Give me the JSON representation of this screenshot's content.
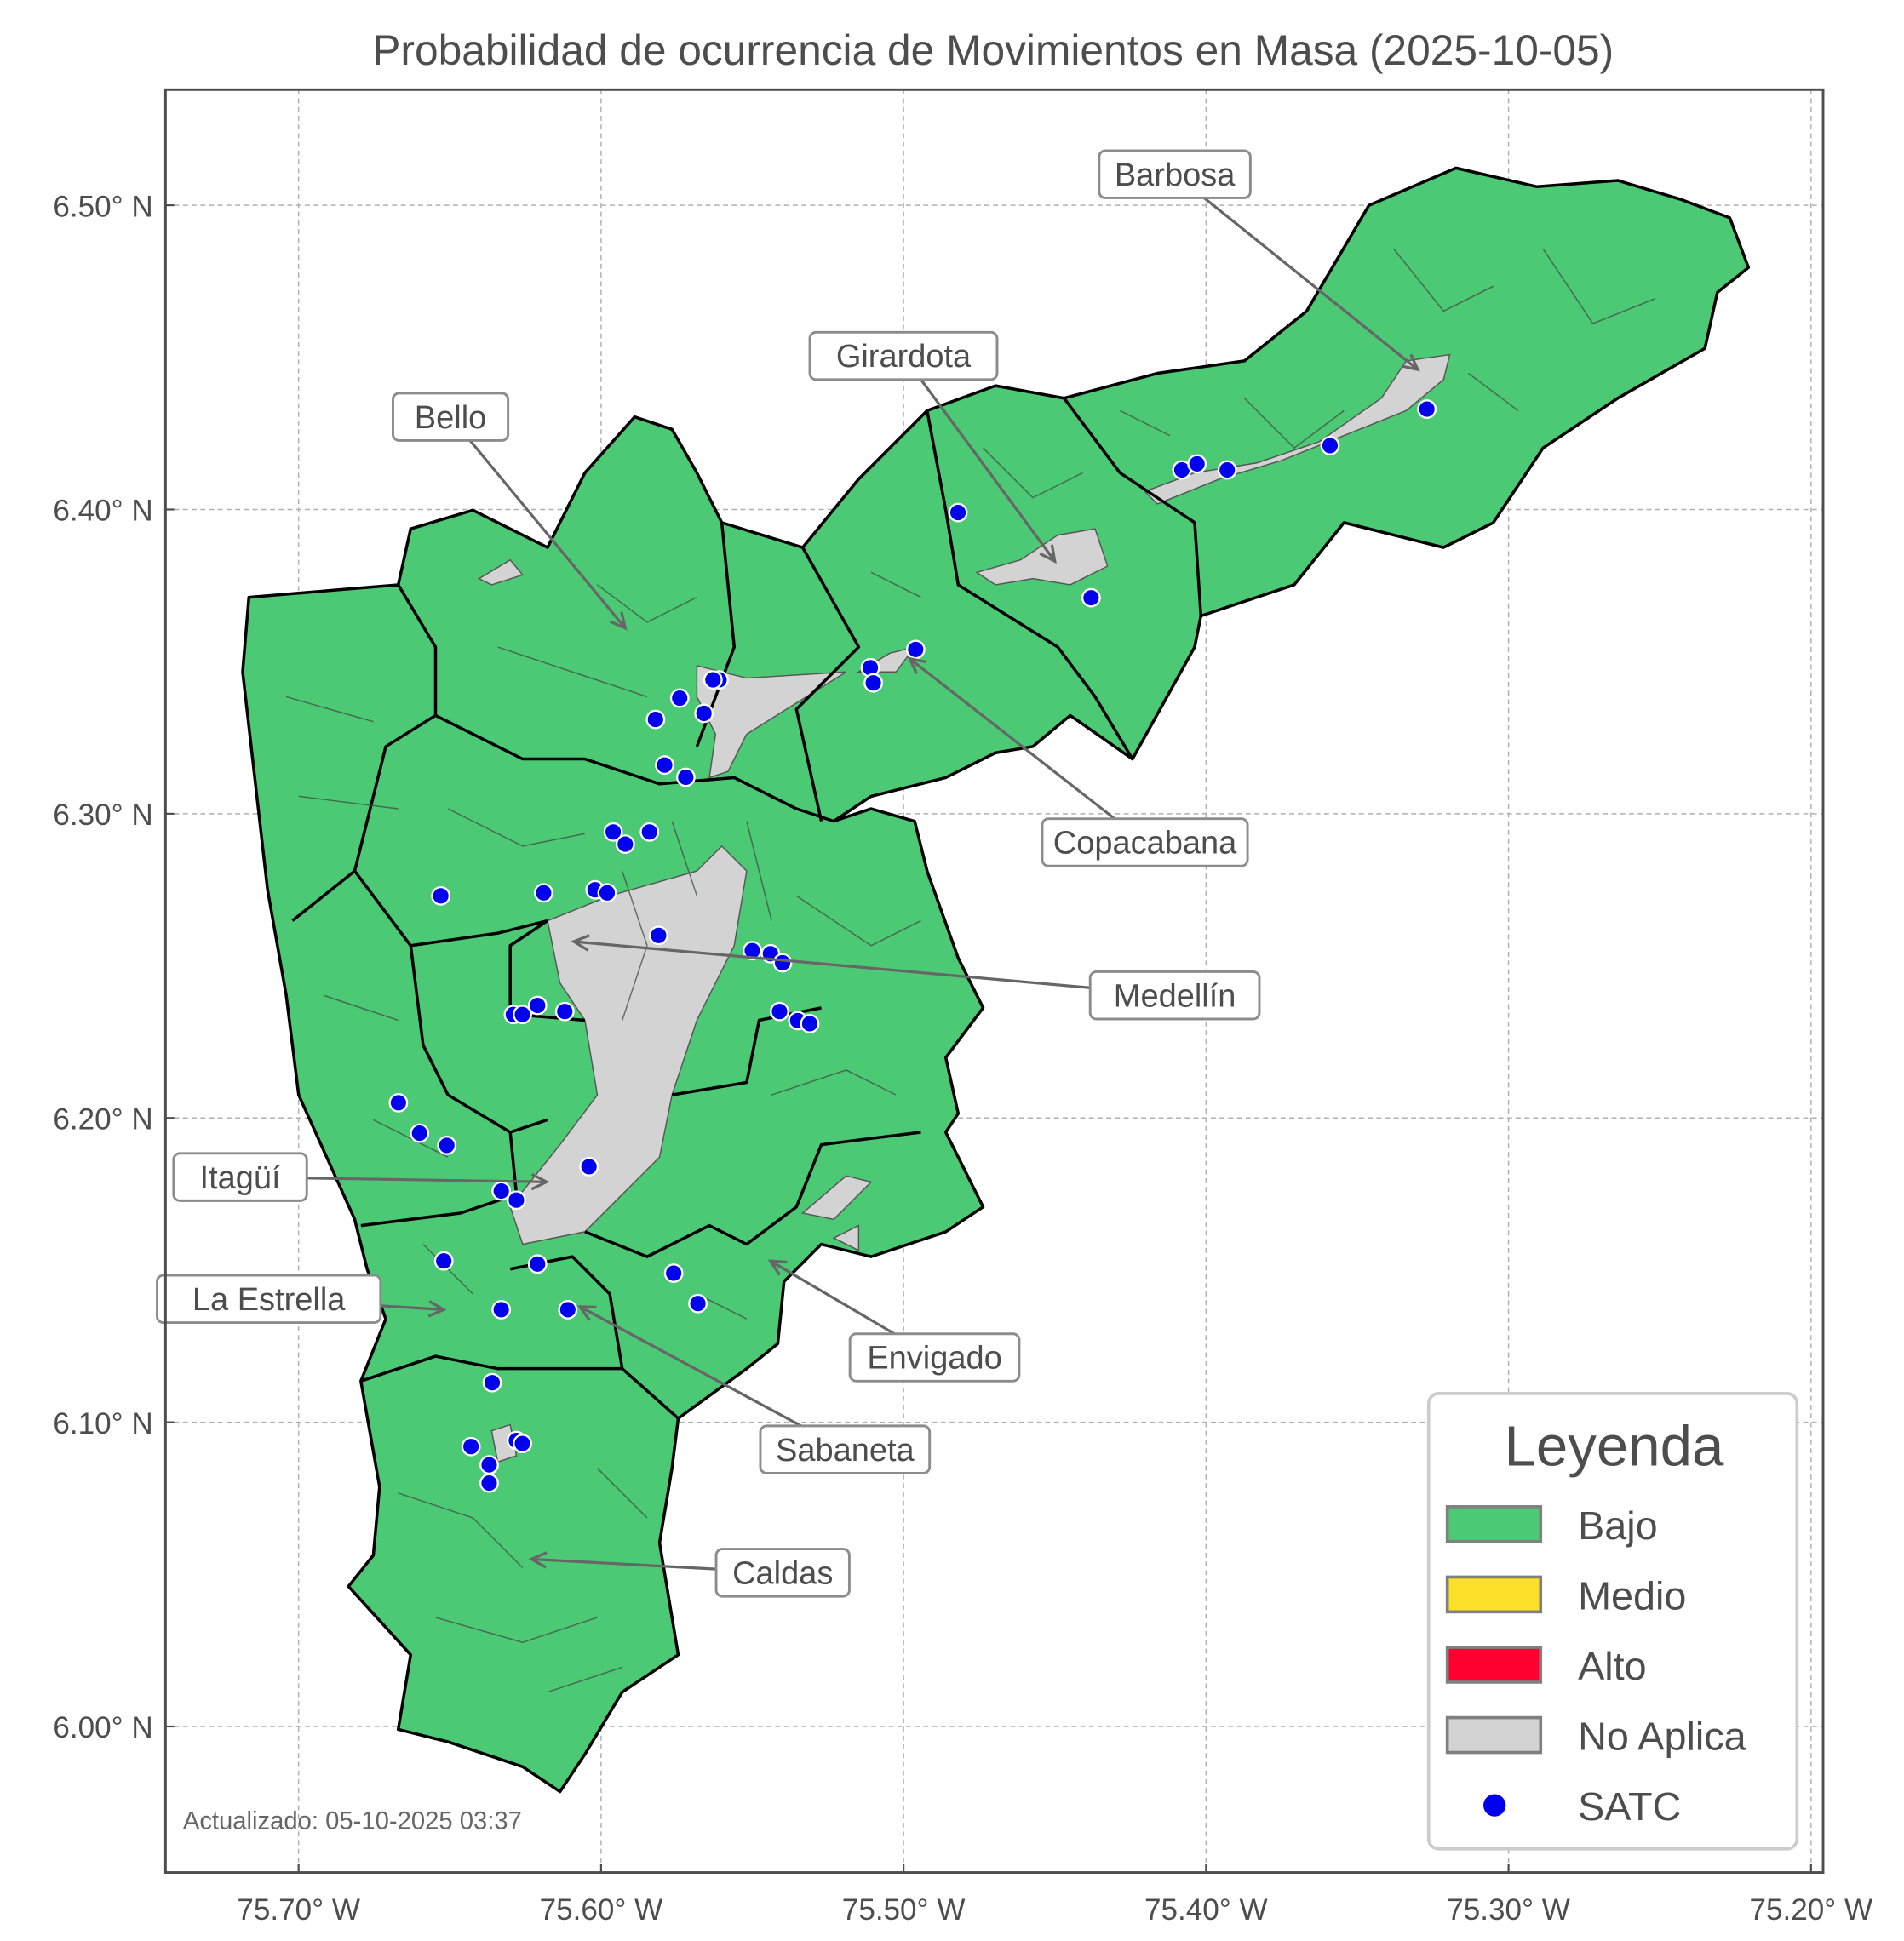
{
  "chart_data": {
    "type": "map",
    "title": "Probabilidad de ocurrencia de Movimientos en Masa (2025-10-05)",
    "xlim": [
      -75.744,
      -75.196
    ],
    "ylim": [
      5.952,
      6.538
    ],
    "grid": true,
    "x_ticks": [
      {
        "value": -75.7,
        "label": "75.70° W"
      },
      {
        "value": -75.6,
        "label": "75.60° W"
      },
      {
        "value": -75.5,
        "label": "75.50° W"
      },
      {
        "value": -75.4,
        "label": "75.40° W"
      },
      {
        "value": -75.3,
        "label": "75.30° W"
      },
      {
        "value": -75.2,
        "label": "75.20° W"
      }
    ],
    "y_ticks": [
      {
        "value": 6.5,
        "label": "6.50° N"
      },
      {
        "value": 6.4,
        "label": "6.40° N"
      },
      {
        "value": 6.3,
        "label": "6.30° N"
      },
      {
        "value": 6.2,
        "label": "6.20° N"
      },
      {
        "value": 6.1,
        "label": "6.10° N"
      },
      {
        "value": 6.0,
        "label": "6.00° N"
      }
    ],
    "region_class": "Bajo",
    "annotations": [
      {
        "label": "Barbosa",
        "lon": -75.33,
        "lat": 6.446
      },
      {
        "label": "Girardota",
        "lon": -75.45,
        "lat": 6.383
      },
      {
        "label": "Bello",
        "lon": -75.592,
        "lat": 6.361
      },
      {
        "label": "Copacabana",
        "lon": -75.498,
        "lat": 6.351
      },
      {
        "label": "Medellín",
        "lon": -75.609,
        "lat": 6.258
      },
      {
        "label": "Itagüí",
        "lon": -75.618,
        "lat": 6.179
      },
      {
        "label": "La Estrella",
        "lon": -75.652,
        "lat": 6.137
      },
      {
        "label": "Envigado",
        "lon": -75.544,
        "lat": 6.153
      },
      {
        "label": "Sabaneta",
        "lon": -75.607,
        "lat": 6.138
      },
      {
        "label": "Caldas",
        "lon": -75.623,
        "lat": 6.055
      }
    ],
    "satc_points": [
      [
        -75.482,
        6.399
      ],
      [
        -75.408,
        6.413
      ],
      [
        -75.403,
        6.415
      ],
      [
        -75.393,
        6.413
      ],
      [
        -75.359,
        6.421
      ],
      [
        -75.327,
        6.433
      ],
      [
        -75.438,
        6.371
      ],
      [
        -75.496,
        6.354
      ],
      [
        -75.511,
        6.348
      ],
      [
        -75.51,
        6.343
      ],
      [
        -75.561,
        6.344
      ],
      [
        -75.563,
        6.344
      ],
      [
        -75.574,
        6.338
      ],
      [
        -75.582,
        6.331
      ],
      [
        -75.566,
        6.333
      ],
      [
        -75.579,
        6.316
      ],
      [
        -75.572,
        6.312
      ],
      [
        -75.596,
        6.294
      ],
      [
        -75.592,
        6.29
      ],
      [
        -75.584,
        6.294
      ],
      [
        -75.653,
        6.273
      ],
      [
        -75.619,
        6.274
      ],
      [
        -75.602,
        6.275
      ],
      [
        -75.598,
        6.274
      ],
      [
        -75.581,
        6.26
      ],
      [
        -75.55,
        6.255
      ],
      [
        -75.544,
        6.254
      ],
      [
        -75.54,
        6.251
      ],
      [
        -75.541,
        6.235
      ],
      [
        -75.535,
        6.232
      ],
      [
        -75.531,
        6.231
      ],
      [
        -75.621,
        6.237
      ],
      [
        -75.629,
        6.234
      ],
      [
        -75.626,
        6.234
      ],
      [
        -75.612,
        6.235
      ],
      [
        -75.667,
        6.205
      ],
      [
        -75.66,
        6.195
      ],
      [
        -75.651,
        6.191
      ],
      [
        -75.604,
        6.184
      ],
      [
        -75.633,
        6.176
      ],
      [
        -75.628,
        6.173
      ],
      [
        -75.652,
        6.153
      ],
      [
        -75.621,
        6.152
      ],
      [
        -75.576,
        6.149
      ],
      [
        -75.568,
        6.139
      ],
      [
        -75.633,
        6.137
      ],
      [
        -75.611,
        6.137
      ],
      [
        -75.636,
        6.113
      ],
      [
        -75.643,
        6.092
      ],
      [
        -75.628,
        6.094
      ],
      [
        -75.626,
        6.093
      ],
      [
        -75.637,
        6.086
      ],
      [
        -75.637,
        6.08
      ]
    ],
    "legend": {
      "title": "Leyenda",
      "placement": "lower-right",
      "items": [
        {
          "label": "Bajo",
          "color": "#4cc974",
          "kind": "patch"
        },
        {
          "label": "Medio",
          "color": "#fde028",
          "kind": "patch"
        },
        {
          "label": "Alto",
          "color": "#ff0030",
          "kind": "patch"
        },
        {
          "label": "No Aplica",
          "color": "#d3d3d3",
          "kind": "patch"
        },
        {
          "label": "SATC",
          "color": "#0000ee",
          "kind": "point"
        }
      ]
    },
    "footer": "Actualizado: 05-10-2025 03:37"
  }
}
